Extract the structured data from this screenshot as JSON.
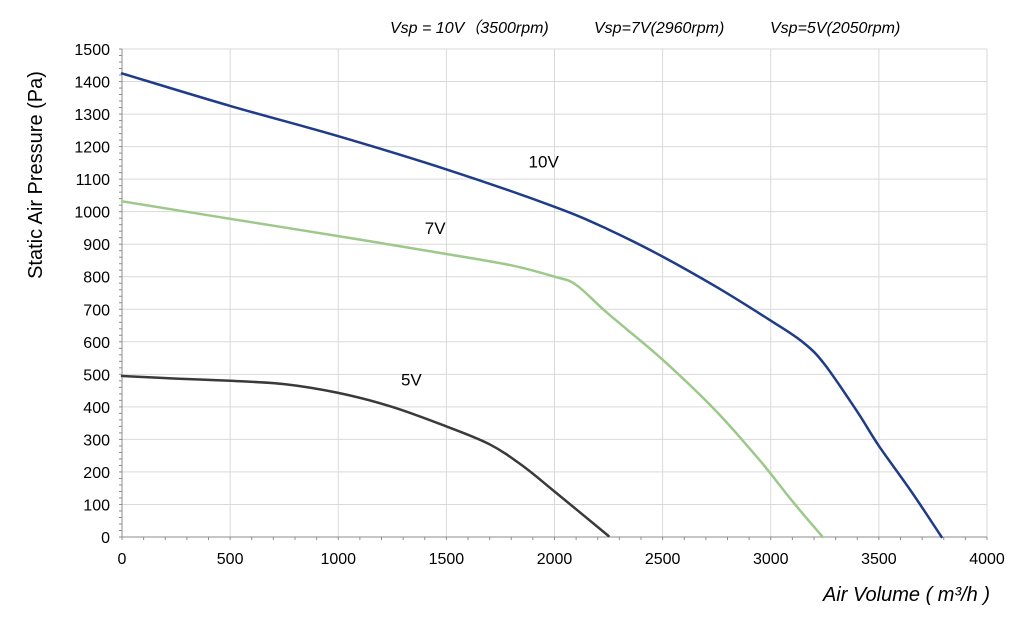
{
  "chart_data": {
    "type": "line",
    "title": "",
    "header_labels": [
      "Vsp = 10V（3500rpm)",
      "Vsp=7V(2960rpm)",
      "Vsp=5V(2050rpm)"
    ],
    "xlabel": "Air Volume ( m³/h )",
    "ylabel": "Static Air Pressure  (Pa)",
    "xlim": [
      0,
      4000
    ],
    "ylim": [
      0,
      1500
    ],
    "x_ticks": [
      0,
      500,
      1000,
      1500,
      2000,
      2500,
      3000,
      3500,
      4000
    ],
    "y_ticks": [
      0,
      100,
      200,
      300,
      400,
      500,
      600,
      700,
      800,
      900,
      1000,
      1100,
      1200,
      1300,
      1400,
      1500
    ],
    "grid": true,
    "series": [
      {
        "name": "10V",
        "color": "#1f3c88",
        "label_at": [
          1880,
          1135
        ],
        "points": [
          [
            0,
            1425
          ],
          [
            500,
            1325
          ],
          [
            1000,
            1232
          ],
          [
            1500,
            1130
          ],
          [
            2000,
            1015
          ],
          [
            2250,
            945
          ],
          [
            2500,
            862
          ],
          [
            2750,
            768
          ],
          [
            3000,
            665
          ],
          [
            3150,
            598
          ],
          [
            3250,
            530
          ],
          [
            3400,
            385
          ],
          [
            3500,
            280
          ],
          [
            3650,
            140
          ],
          [
            3790,
            0
          ]
        ]
      },
      {
        "name": "7V",
        "color": "#9cc98a",
        "label_at": [
          1400,
          932
        ],
        "points": [
          [
            0,
            1032
          ],
          [
            500,
            978
          ],
          [
            1000,
            925
          ],
          [
            1500,
            870
          ],
          [
            1800,
            835
          ],
          [
            2000,
            800
          ],
          [
            2100,
            775
          ],
          [
            2250,
            685
          ],
          [
            2500,
            545
          ],
          [
            2750,
            385
          ],
          [
            2950,
            235
          ],
          [
            3100,
            110
          ],
          [
            3240,
            0
          ]
        ]
      },
      {
        "name": "5V",
        "color": "#3a3a3a",
        "label_at": [
          1290,
          465
        ],
        "points": [
          [
            0,
            495
          ],
          [
            250,
            487
          ],
          [
            500,
            480
          ],
          [
            750,
            470
          ],
          [
            1000,
            443
          ],
          [
            1250,
            400
          ],
          [
            1500,
            340
          ],
          [
            1700,
            285
          ],
          [
            1850,
            220
          ],
          [
            2000,
            140
          ],
          [
            2250,
            3
          ]
        ]
      }
    ]
  }
}
